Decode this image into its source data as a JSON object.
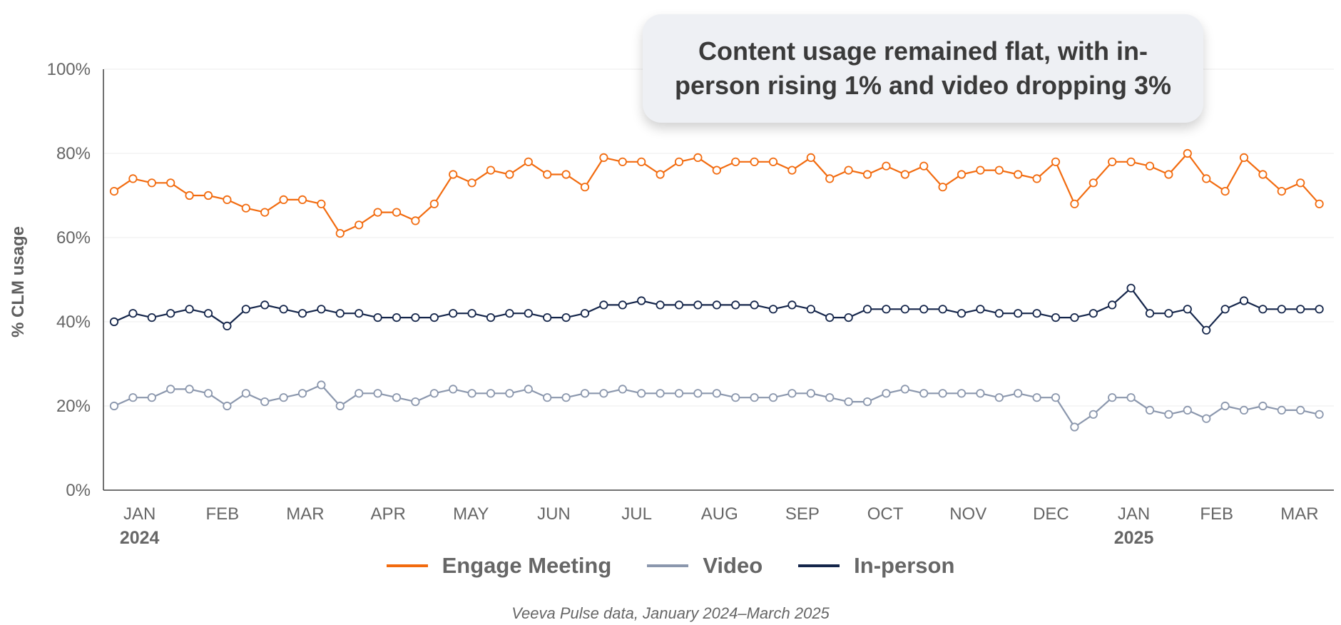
{
  "chart_data": {
    "type": "line",
    "title": "Content usage remained flat, with in-person rising 1% and video dropping 3%",
    "ylabel": "% CLM usage",
    "xlabel": "",
    "ylim": [
      0,
      100
    ],
    "y_ticks": [
      "0%",
      "20%",
      "40%",
      "60%",
      "80%",
      "100%"
    ],
    "y_tick_values": [
      0,
      20,
      40,
      60,
      80,
      100
    ],
    "x_ticks": [
      "JAN",
      "FEB",
      "MAR",
      "APR",
      "MAY",
      "JUN",
      "JUL",
      "AUG",
      "SEP",
      "OCT",
      "NOV",
      "DEC",
      "JAN",
      "FEB",
      "MAR"
    ],
    "x_tick_index": [
      1.35,
      5.75,
      10.15,
      14.55,
      18.95,
      23.35,
      27.75,
      32.15,
      36.55,
      40.95,
      45.35,
      49.75,
      54.15,
      58.55,
      62.95
    ],
    "year_labels": [
      {
        "label": "2024",
        "index": 1.35
      },
      {
        "label": "2025",
        "index": 54.15
      }
    ],
    "grid": true,
    "series": [
      {
        "name": "Engage Meeting",
        "color": "#f26b0f",
        "values": [
          71,
          74,
          73,
          73,
          70,
          70,
          69,
          67,
          66,
          69,
          69,
          68,
          61,
          63,
          66,
          66,
          64,
          68,
          75,
          73,
          76,
          75,
          78,
          75,
          75,
          72,
          79,
          78,
          78,
          75,
          78,
          79,
          76,
          78,
          78,
          78,
          76,
          79,
          74,
          76,
          75,
          77,
          75,
          77,
          72,
          75,
          76,
          76,
          75,
          74,
          78,
          68,
          73,
          78,
          78,
          77,
          75,
          80,
          74,
          71,
          79,
          75,
          71,
          73,
          68
        ]
      },
      {
        "name": "Video",
        "color": "#8b97ad",
        "values": [
          20,
          22,
          22,
          24,
          24,
          23,
          20,
          23,
          21,
          22,
          23,
          25,
          20,
          23,
          23,
          22,
          21,
          23,
          24,
          23,
          23,
          23,
          24,
          22,
          22,
          23,
          23,
          24,
          23,
          23,
          23,
          23,
          23,
          22,
          22,
          22,
          23,
          23,
          22,
          21,
          21,
          23,
          24,
          23,
          23,
          23,
          23,
          22,
          23,
          22,
          22,
          15,
          18,
          22,
          22,
          19,
          18,
          19,
          17,
          20,
          19,
          20,
          19,
          19,
          18
        ]
      },
      {
        "name": "In-person",
        "color": "#14254a",
        "values": [
          40,
          42,
          41,
          42,
          43,
          42,
          39,
          43,
          44,
          43,
          42,
          43,
          42,
          42,
          41,
          41,
          41,
          41,
          42,
          42,
          41,
          42,
          42,
          41,
          41,
          42,
          44,
          44,
          45,
          44,
          44,
          44,
          44,
          44,
          44,
          43,
          44,
          43,
          41,
          41,
          43,
          43,
          43,
          43,
          43,
          42,
          43,
          42,
          42,
          42,
          41,
          41,
          42,
          44,
          48,
          42,
          42,
          43,
          38,
          43,
          45,
          43,
          43,
          43,
          43
        ]
      }
    ],
    "legend": [
      "Engage Meeting",
      "Video",
      "In-person"
    ],
    "legend_position": "bottom-center",
    "source": "Veeva Pulse data, January 2024–March 2025"
  }
}
